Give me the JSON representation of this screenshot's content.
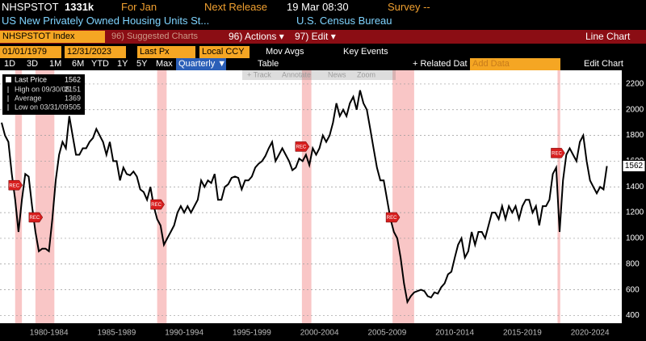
{
  "header": {
    "ticker": "NHSPSTOT",
    "last": "1331k",
    "period": "For Jan",
    "next_release_label": "Next Release",
    "next_release": "19 Mar 08:30",
    "survey": "Survey --",
    "description": "US New Privately Owned Housing Units St...",
    "source": "U.S. Census Bureau"
  },
  "toolbar": {
    "security": "NHSPSTOT Index",
    "suggested": "96) Suggested Charts",
    "actions": "96) Actions ▾",
    "edit": "97) Edit ▾",
    "chart_type": "Line Chart",
    "start_date": "01/01/1979",
    "end_date": "12/31/2023",
    "price": "Last Px",
    "currency": "Local CCY",
    "mov_avgs": "Mov Avgs",
    "key_events": "Key Events",
    "periods": [
      "1D",
      "3D",
      "1M",
      "6M",
      "YTD",
      "1Y",
      "5Y",
      "Max"
    ],
    "frequency": "Quarterly ▼",
    "table": "Table",
    "related": "+ Related Dat",
    "add_data": "Add Data",
    "edit_chart": "Edit Chart",
    "chart_tools": [
      "+ Track",
      "Annotate",
      "News",
      "Zoom"
    ]
  },
  "chart_data": {
    "type": "line",
    "grid": true,
    "x": [
      1979,
      1979.25,
      1979.5,
      1979.75,
      1980,
      1980.25,
      1980.5,
      1980.75,
      1981,
      1981.25,
      1981.5,
      1981.75,
      1982,
      1982.25,
      1982.5,
      1982.75,
      1983,
      1983.25,
      1983.5,
      1983.75,
      1984,
      1984.25,
      1984.5,
      1984.75,
      1985,
      1985.25,
      1985.5,
      1985.75,
      1986,
      1986.25,
      1986.5,
      1986.75,
      1987,
      1987.25,
      1987.5,
      1987.75,
      1988,
      1988.25,
      1988.5,
      1988.75,
      1989,
      1989.25,
      1989.5,
      1989.75,
      1990,
      1990.25,
      1990.5,
      1990.75,
      1991,
      1991.25,
      1991.5,
      1991.75,
      1992,
      1992.25,
      1992.5,
      1992.75,
      1993,
      1993.25,
      1993.5,
      1993.75,
      1994,
      1994.25,
      1994.5,
      1994.75,
      1995,
      1995.25,
      1995.5,
      1995.75,
      1996,
      1996.25,
      1996.5,
      1996.75,
      1997,
      1997.25,
      1997.5,
      1997.75,
      1998,
      1998.25,
      1998.5,
      1998.75,
      1999,
      1999.25,
      1999.5,
      1999.75,
      2000,
      2000.25,
      2000.5,
      2000.75,
      2001,
      2001.25,
      2001.5,
      2001.75,
      2002,
      2002.25,
      2002.5,
      2002.75,
      2003,
      2003.25,
      2003.5,
      2003.75,
      2004,
      2004.25,
      2004.5,
      2004.75,
      2005,
      2005.25,
      2005.5,
      2005.75,
      2006,
      2006.25,
      2006.5,
      2006.75,
      2007,
      2007.25,
      2007.5,
      2007.75,
      2008,
      2008.25,
      2008.5,
      2008.75,
      2009,
      2009.25,
      2009.5,
      2009.75,
      2010,
      2010.25,
      2010.5,
      2010.75,
      2011,
      2011.25,
      2011.5,
      2011.75,
      2012,
      2012.25,
      2012.5,
      2012.75,
      2013,
      2013.25,
      2013.5,
      2013.75,
      2014,
      2014.25,
      2014.5,
      2014.75,
      2015,
      2015.25,
      2015.5,
      2015.75,
      2016,
      2016.25,
      2016.5,
      2016.75,
      2017,
      2017.25,
      2017.5,
      2017.75,
      2018,
      2018.25,
      2018.5,
      2018.75,
      2019,
      2019.25,
      2019.5,
      2019.75,
      2020,
      2020.25,
      2020.5,
      2020.75,
      2021,
      2021.25,
      2021.5,
      2021.75,
      2022,
      2022.25,
      2022.5,
      2022.75,
      2023,
      2023.25,
      2023.5,
      2023.75
    ],
    "series": [
      {
        "name": "Last Price",
        "color": "#000000",
        "values": [
          1900,
          1800,
          1750,
          1500,
          1300,
          1050,
          1300,
          1500,
          1480,
          1250,
          1050,
          900,
          920,
          920,
          900,
          1150,
          1450,
          1650,
          1750,
          1700,
          1950,
          1800,
          1650,
          1650,
          1700,
          1700,
          1750,
          1780,
          1850,
          1800,
          1750,
          1650,
          1750,
          1600,
          1600,
          1450,
          1550,
          1500,
          1490,
          1520,
          1480,
          1380,
          1360,
          1300,
          1400,
          1250,
          1150,
          1100,
          950,
          1000,
          1050,
          1100,
          1200,
          1250,
          1200,
          1250,
          1200,
          1250,
          1300,
          1450,
          1400,
          1450,
          1430,
          1500,
          1300,
          1300,
          1400,
          1420,
          1470,
          1480,
          1470,
          1380,
          1450,
          1450,
          1480,
          1550,
          1580,
          1600,
          1640,
          1700,
          1750,
          1600,
          1650,
          1700,
          1650,
          1600,
          1530,
          1550,
          1620,
          1600,
          1650,
          1570,
          1700,
          1650,
          1700,
          1800,
          1750,
          1800,
          1900,
          2050,
          1950,
          2000,
          1950,
          2050,
          2100,
          2000,
          2151,
          2050,
          2000,
          1850,
          1700,
          1550,
          1450,
          1450,
          1300,
          1150,
          1050,
          1000,
          850,
          650,
          505,
          550,
          580,
          590,
          600,
          590,
          550,
          540,
          580,
          570,
          620,
          650,
          720,
          740,
          850,
          950,
          1000,
          850,
          900,
          1050,
          950,
          1050,
          1050,
          1000,
          1100,
          1200,
          1200,
          1150,
          1250,
          1150,
          1250,
          1200,
          1250,
          1150,
          1250,
          1300,
          1300,
          1200,
          1250,
          1100,
          1250,
          1250,
          1300,
          1500,
          1550,
          1050,
          1450,
          1650,
          1700,
          1650,
          1600,
          1750,
          1800,
          1600,
          1450,
          1400,
          1350,
          1400,
          1380,
          1562
        ]
      }
    ],
    "legend_stats": [
      {
        "label": "High on 09/30/05",
        "value": 2151
      },
      {
        "label": "Average",
        "value": 1369
      },
      {
        "label": "Low on 03/31/09",
        "value": 505
      }
    ],
    "recessions": [
      [
        1980,
        1980.5
      ],
      [
        1981.5,
        1982.9
      ],
      [
        1990.5,
        1991.2
      ],
      [
        2001.2,
        2001.9
      ],
      [
        2007.9,
        2009.5
      ],
      [
        2020.1,
        2020.3
      ]
    ],
    "event_label": "REC",
    "xlim": [
      1979,
      2024.55
    ],
    "xticks": [
      {
        "value": 1982.5,
        "label": "1980-1984"
      },
      {
        "value": 1987.5,
        "label": "1985-1989"
      },
      {
        "value": 1992.5,
        "label": "1990-1994"
      },
      {
        "value": 1997.5,
        "label": "1995-1999"
      },
      {
        "value": 2002.5,
        "label": "2000-2004"
      },
      {
        "value": 2007.5,
        "label": "2005-2009"
      },
      {
        "value": 2012.5,
        "label": "2010-2014"
      },
      {
        "value": 2017.5,
        "label": "2015-2019"
      },
      {
        "value": 2022.5,
        "label": "2020-2024"
      }
    ],
    "ylim": [
      340,
      2300
    ],
    "yticks": [
      400,
      600,
      800,
      1000,
      1200,
      1400,
      1600,
      1800,
      2000,
      2200
    ]
  }
}
